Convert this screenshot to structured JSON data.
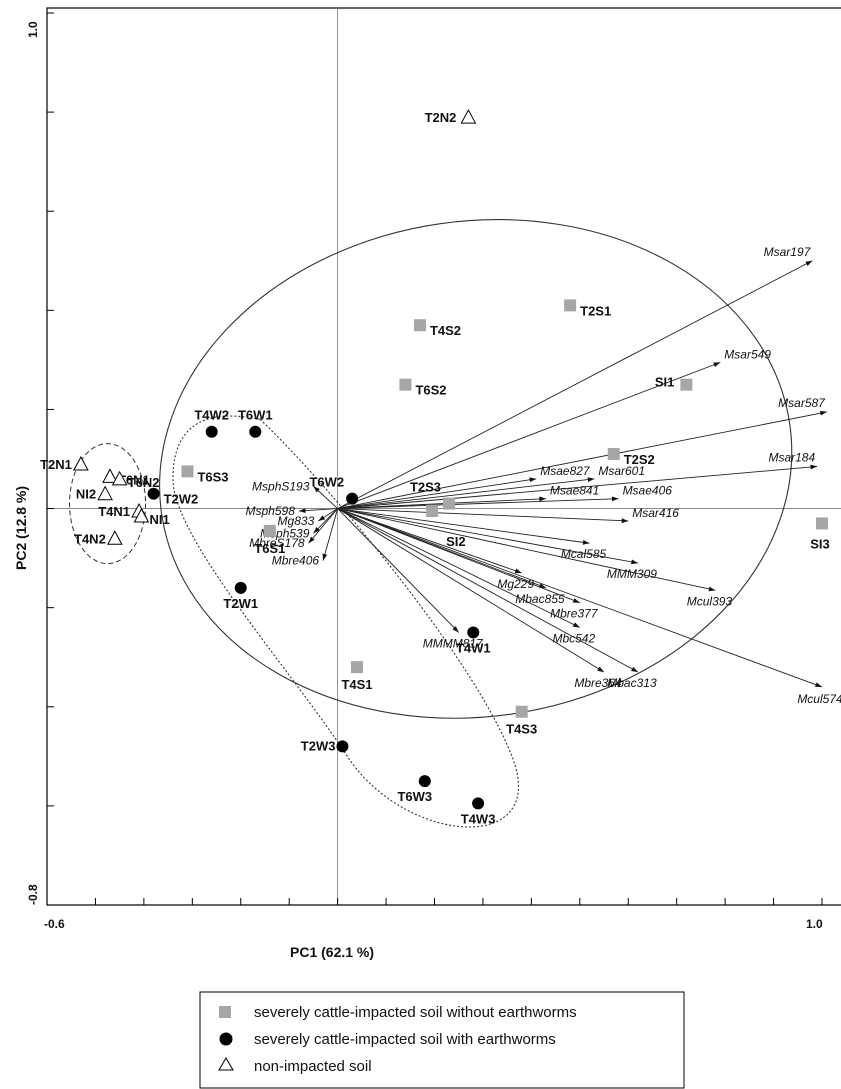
{
  "chart_data": {
    "type": "scatter",
    "xlabel": "PC1 (62.1 %)",
    "ylabel": "PC2 (12.8 %)",
    "xlim": [
      -0.6,
      1.0
    ],
    "ylim": [
      -0.8,
      1.0
    ],
    "x_tick_labels": [
      "-0.6",
      "1.0"
    ],
    "y_tick_labels": [
      "1.0",
      "-0.8"
    ],
    "legend": [
      {
        "marker": "square",
        "label": "severely cattle-impacted soil without earthworms"
      },
      {
        "marker": "circle",
        "label": "severely cattle-impacted soil with earthworms"
      },
      {
        "marker": "triangle",
        "label": "non-impacted soil"
      }
    ],
    "colors": {
      "square": "#a6a6a6",
      "circle": "#000000",
      "triangle": "#ffffff"
    },
    "sites": [
      {
        "name": "T2N2",
        "group": "triangle",
        "x": 0.27,
        "y": 0.79
      },
      {
        "name": "T2N1",
        "group": "triangle",
        "x": -0.53,
        "y": 0.09
      },
      {
        "name": "T6N1",
        "group": "triangle",
        "x": -0.47,
        "y": 0.065
      },
      {
        "name": "T6N2",
        "group": "triangle",
        "x": -0.45,
        "y": 0.06
      },
      {
        "name": "NI2",
        "group": "triangle",
        "x": -0.48,
        "y": 0.03
      },
      {
        "name": "T4N1",
        "group": "triangle",
        "x": -0.41,
        "y": -0.005
      },
      {
        "name": "NI1",
        "group": "triangle",
        "x": -0.405,
        "y": -0.015
      },
      {
        "name": "T4N2",
        "group": "triangle",
        "x": -0.46,
        "y": -0.06
      },
      {
        "name": "T2S1",
        "group": "square",
        "x": 0.48,
        "y": 0.41
      },
      {
        "name": "T4S2",
        "group": "square",
        "x": 0.17,
        "y": 0.37
      },
      {
        "name": "T6S2",
        "group": "square",
        "x": 0.14,
        "y": 0.25
      },
      {
        "name": "SI1",
        "group": "square",
        "x": 0.72,
        "y": 0.25
      },
      {
        "name": "T2S2",
        "group": "square",
        "x": 0.57,
        "y": 0.11
      },
      {
        "name": "T6S3",
        "group": "square",
        "x": -0.31,
        "y": 0.075
      },
      {
        "name": "T2S3",
        "group": "square",
        "x": 0.23,
        "y": 0.01
      },
      {
        "name": "SI2",
        "group": "square",
        "x": 0.195,
        "y": -0.005
      },
      {
        "name": "T6S1",
        "group": "square",
        "x": -0.14,
        "y": -0.045
      },
      {
        "name": "SI3",
        "group": "square",
        "x": 1.0,
        "y": -0.03
      },
      {
        "name": "T4S1",
        "group": "square",
        "x": 0.04,
        "y": -0.32
      },
      {
        "name": "T4S3",
        "group": "square",
        "x": 0.38,
        "y": -0.41
      },
      {
        "name": "T4W2",
        "group": "circle",
        "x": -0.26,
        "y": 0.155
      },
      {
        "name": "T6W1",
        "group": "circle",
        "x": -0.17,
        "y": 0.155
      },
      {
        "name": "T2W2",
        "group": "circle",
        "x": -0.38,
        "y": 0.03
      },
      {
        "name": "T6W2",
        "group": "circle",
        "x": 0.03,
        "y": 0.02
      },
      {
        "name": "T2W1",
        "group": "circle",
        "x": -0.2,
        "y": -0.16
      },
      {
        "name": "T4W1",
        "group": "circle",
        "x": 0.28,
        "y": -0.25
      },
      {
        "name": "T2W3",
        "group": "circle",
        "x": 0.01,
        "y": -0.48
      },
      {
        "name": "T6W3",
        "group": "circle",
        "x": 0.18,
        "y": -0.55
      },
      {
        "name": "T4W3",
        "group": "circle",
        "x": 0.29,
        "y": -0.595
      }
    ],
    "vectors": [
      {
        "name": "Msar197",
        "x": 0.98,
        "y": 0.5
      },
      {
        "name": "Msar549",
        "x": 0.79,
        "y": 0.295
      },
      {
        "name": "Msar587",
        "x": 1.01,
        "y": 0.195
      },
      {
        "name": "Msar184",
        "x": 0.99,
        "y": 0.085
      },
      {
        "name": "Msar601",
        "x": 0.53,
        "y": 0.06
      },
      {
        "name": "Msae827",
        "x": 0.41,
        "y": 0.06
      },
      {
        "name": "Msae841",
        "x": 0.43,
        "y": 0.02
      },
      {
        "name": "Msae406",
        "x": 0.58,
        "y": 0.02
      },
      {
        "name": "Msar416",
        "x": 0.6,
        "y": -0.025
      },
      {
        "name": "Mcal585",
        "x": 0.52,
        "y": -0.07
      },
      {
        "name": "MMM309",
        "x": 0.62,
        "y": -0.11
      },
      {
        "name": "Mcul393",
        "x": 0.78,
        "y": -0.165
      },
      {
        "name": "Mg229",
        "x": 0.38,
        "y": -0.13
      },
      {
        "name": "Mbac855",
        "x": 0.43,
        "y": -0.16
      },
      {
        "name": "Mbre377",
        "x": 0.5,
        "y": -0.19
      },
      {
        "name": "Mbc542",
        "x": 0.5,
        "y": -0.24
      },
      {
        "name": "Mbre364",
        "x": 0.55,
        "y": -0.33
      },
      {
        "name": "Mbac313",
        "x": 0.62,
        "y": -0.33
      },
      {
        "name": "Mcul574",
        "x": 1.0,
        "y": -0.36
      },
      {
        "name": "MMMM817",
        "x": 0.25,
        "y": -0.25
      },
      {
        "name": "MsphS193",
        "x": -0.05,
        "y": 0.045
      },
      {
        "name": "Msph598",
        "x": -0.08,
        "y": -0.005
      },
      {
        "name": "Mg833",
        "x": -0.04,
        "y": -0.025
      },
      {
        "name": "Msph539",
        "x": -0.05,
        "y": -0.05
      },
      {
        "name": "MbreS178",
        "x": -0.06,
        "y": -0.07
      },
      {
        "name": "Mbre406",
        "x": -0.03,
        "y": -0.105
      }
    ]
  }
}
